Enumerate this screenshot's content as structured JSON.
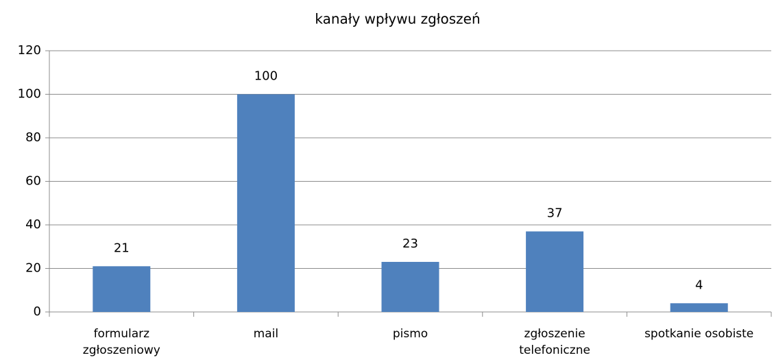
{
  "chart_data": {
    "type": "bar",
    "title": "kanały wpływu zgłoszeń",
    "categories": [
      "formularz zgłoszeniowy",
      "mail",
      "pismo",
      "zgłoszenie telefoniczne",
      "spotkanie osobiste"
    ],
    "values": [
      21,
      100,
      23,
      37,
      4
    ],
    "color": "#4f81bd",
    "ylim": [
      0,
      120
    ],
    "yticks": [
      0,
      20,
      40,
      60,
      80,
      100,
      120
    ],
    "grid": true
  }
}
